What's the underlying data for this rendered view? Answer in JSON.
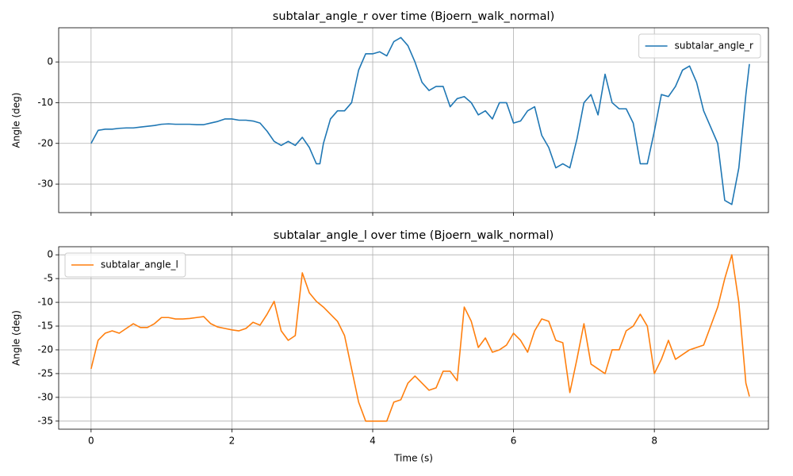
{
  "chart_data": [
    {
      "type": "line",
      "title": "subtalar_angle_r over time (Bjoern_walk_normal)",
      "ylabel": "Angle (deg)",
      "x": [
        0,
        0.1,
        0.2,
        0.3,
        0.4,
        0.5,
        0.6,
        0.7,
        0.8,
        0.9,
        1.0,
        1.1,
        1.2,
        1.3,
        1.4,
        1.5,
        1.6,
        1.7,
        1.8,
        1.9,
        2.0,
        2.1,
        2.2,
        2.3,
        2.4,
        2.5,
        2.6,
        2.7,
        2.8,
        2.9,
        3.0,
        3.1,
        3.2,
        3.25,
        3.3,
        3.4,
        3.5,
        3.6,
        3.7,
        3.8,
        3.9,
        4.0,
        4.1,
        4.2,
        4.3,
        4.4,
        4.5,
        4.6,
        4.7,
        4.8,
        4.9,
        5.0,
        5.1,
        5.2,
        5.3,
        5.4,
        5.5,
        5.6,
        5.7,
        5.8,
        5.9,
        6.0,
        6.1,
        6.2,
        6.3,
        6.4,
        6.5,
        6.6,
        6.7,
        6.8,
        6.9,
        7.0,
        7.1,
        7.2,
        7.3,
        7.4,
        7.5,
        7.6,
        7.7,
        7.8,
        7.9,
        8.0,
        8.1,
        8.2,
        8.3,
        8.4,
        8.5,
        8.6,
        8.7,
        8.8,
        8.9,
        9.0,
        9.1,
        9.2,
        9.3,
        9.35
      ],
      "series": [
        {
          "name": "subtalar_angle_r",
          "color": "#1f77b4",
          "values": [
            -20,
            -16.8,
            -16.5,
            -16.5,
            -16.3,
            -16.2,
            -16.2,
            -16,
            -15.8,
            -15.6,
            -15.3,
            -15.2,
            -15.3,
            -15.3,
            -15.3,
            -15.4,
            -15.4,
            -15,
            -14.6,
            -14,
            -14,
            -14.3,
            -14.3,
            -14.5,
            -15,
            -17,
            -19.5,
            -20.5,
            -19.5,
            -20.5,
            -18.5,
            -21,
            -25,
            -25,
            -20,
            -14,
            -12,
            -12,
            -10,
            -2,
            2,
            2,
            2.5,
            1.5,
            5,
            6,
            4,
            0,
            -5,
            -7,
            -6,
            -6,
            -11,
            -9,
            -8.5,
            -10,
            -13,
            -12,
            -14,
            -10,
            -10,
            -15,
            -14.5,
            -12,
            -11,
            -18,
            -21,
            -26,
            -25,
            -26,
            -19,
            -10,
            -8,
            -13,
            -3,
            -10,
            -11.5,
            -11.5,
            -15,
            -25,
            -25,
            -17,
            -8,
            -8.5,
            -6,
            -2,
            -1,
            -5,
            -12,
            -16,
            -20,
            -34,
            -35,
            -26,
            -8,
            -0.5
          ]
        }
      ],
      "xlim": [
        -0.46,
        9.62
      ],
      "xticks": [
        0,
        2,
        4,
        6,
        8
      ],
      "show_xtick_labels": false,
      "ylim": [
        -37,
        8.4
      ],
      "yticks": [
        -30,
        -20,
        -10,
        0
      ],
      "grid": true,
      "legend": "upper right"
    },
    {
      "type": "line",
      "title": "subtalar_angle_l over time (Bjoern_walk_normal)",
      "ylabel": "Angle (deg)",
      "xlabel": "Time (s)",
      "x": [
        0,
        0.1,
        0.2,
        0.3,
        0.4,
        0.5,
        0.6,
        0.7,
        0.8,
        0.9,
        1.0,
        1.1,
        1.2,
        1.3,
        1.4,
        1.5,
        1.6,
        1.7,
        1.8,
        1.9,
        2.0,
        2.1,
        2.2,
        2.3,
        2.4,
        2.5,
        2.6,
        2.7,
        2.8,
        2.9,
        3.0,
        3.1,
        3.2,
        3.3,
        3.4,
        3.5,
        3.6,
        3.7,
        3.8,
        3.9,
        4.0,
        4.1,
        4.2,
        4.3,
        4.4,
        4.5,
        4.6,
        4.7,
        4.8,
        4.9,
        5.0,
        5.1,
        5.2,
        5.3,
        5.4,
        5.5,
        5.6,
        5.7,
        5.8,
        5.9,
        6.0,
        6.1,
        6.2,
        6.3,
        6.4,
        6.5,
        6.6,
        6.7,
        6.8,
        6.9,
        7.0,
        7.1,
        7.2,
        7.3,
        7.4,
        7.5,
        7.6,
        7.7,
        7.8,
        7.9,
        8.0,
        8.1,
        8.2,
        8.3,
        8.4,
        8.5,
        8.6,
        8.7,
        8.8,
        8.9,
        9.0,
        9.1,
        9.2,
        9.3,
        9.35
      ],
      "series": [
        {
          "name": "subtalar_angle_l",
          "color": "#ff7f0e",
          "values": [
            -24,
            -18,
            -16.5,
            -16,
            -16.5,
            -15.5,
            -14.5,
            -15.3,
            -15.3,
            -14.5,
            -13.2,
            -13.2,
            -13.5,
            -13.5,
            -13.4,
            -13.2,
            -13,
            -14.5,
            -15.2,
            -15.5,
            -15.8,
            -16,
            -15.5,
            -14.2,
            -14.8,
            -12.5,
            -9.8,
            -16,
            -18,
            -17,
            -3.8,
            -8,
            -9.8,
            -11,
            -12.5,
            -14,
            -17,
            -24,
            -31,
            -35,
            -35,
            -35,
            -35,
            -31,
            -30.5,
            -27,
            -25.5,
            -27,
            -28.5,
            -28,
            -24.5,
            -24.5,
            -26.5,
            -11,
            -14,
            -19.5,
            -17.5,
            -20.5,
            -20,
            -19,
            -16.5,
            -18,
            -20.5,
            -16,
            -13.5,
            -14,
            -18,
            -18.5,
            -29,
            -22,
            -14.5,
            -23,
            -24,
            -25,
            -20,
            -20,
            -16,
            -15,
            -12.5,
            -15,
            -25,
            -22,
            -18,
            -22,
            -21,
            -20,
            -19.5,
            -19,
            -15,
            -11,
            -5,
            0,
            -10,
            -27,
            -29.8
          ]
        }
      ],
      "xlim": [
        -0.46,
        9.62
      ],
      "xticks": [
        0,
        2,
        4,
        6,
        8
      ],
      "show_xtick_labels": true,
      "ylim": [
        -36.7,
        1.7
      ],
      "yticks": [
        -35,
        -30,
        -25,
        -20,
        -15,
        -10,
        -5,
        0
      ],
      "grid": true,
      "legend": "upper left"
    }
  ]
}
